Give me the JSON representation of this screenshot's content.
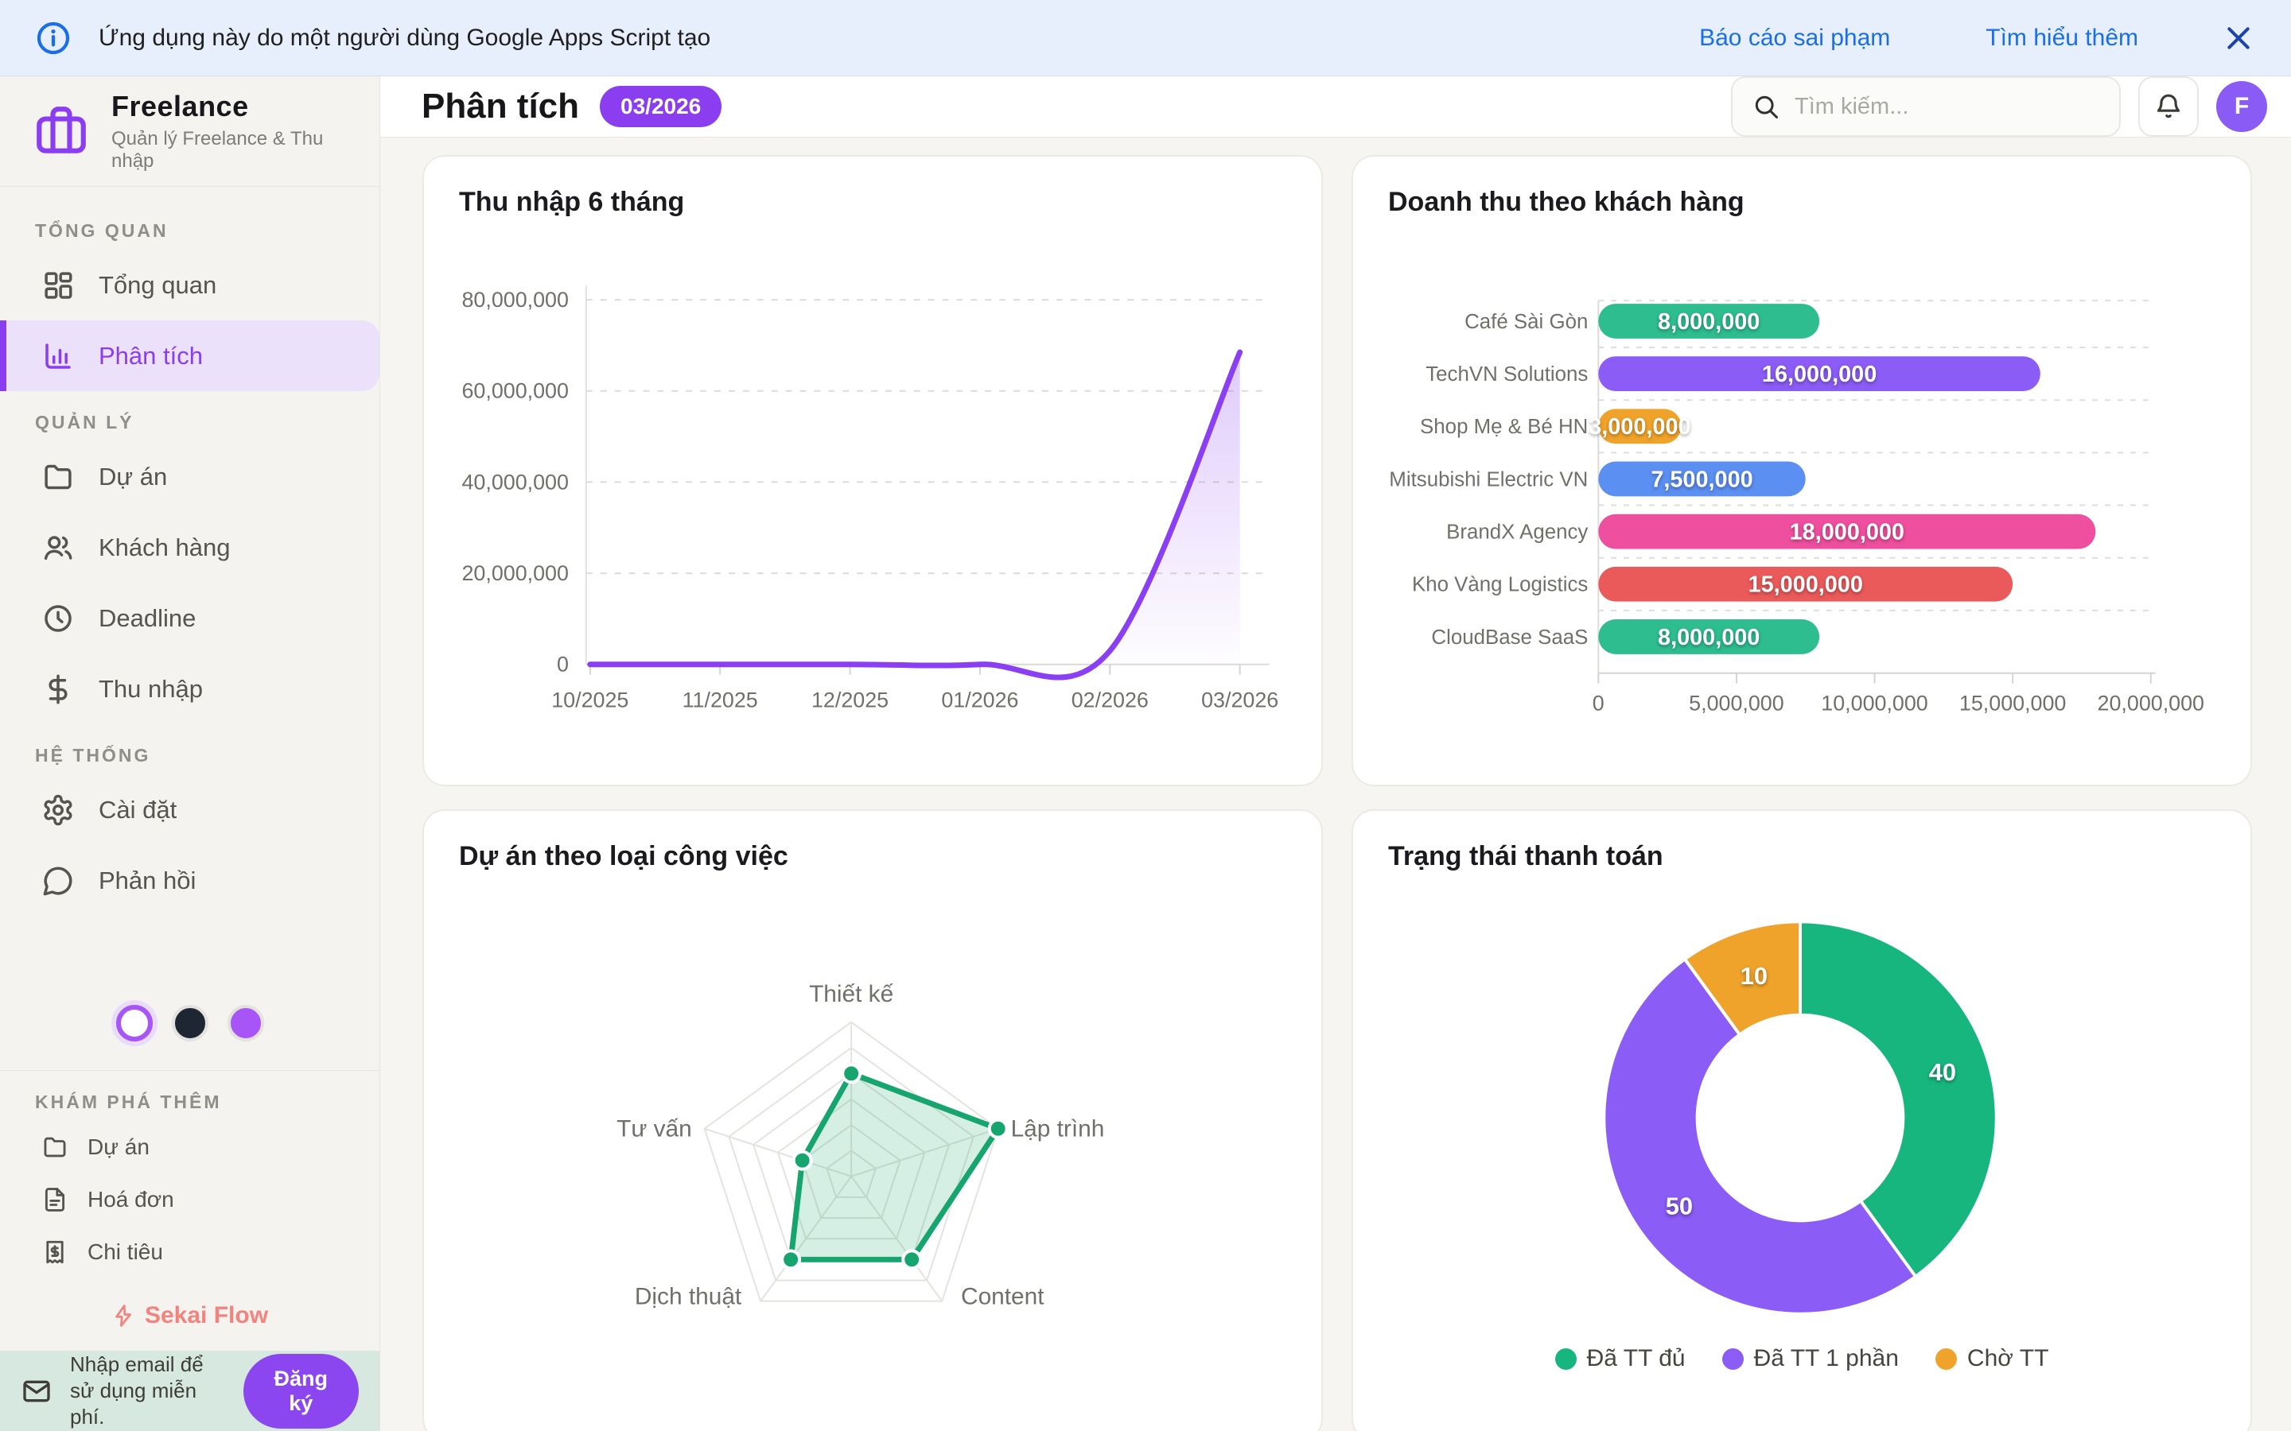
{
  "banner": {
    "message": "Ứng dụng này do một người dùng Google Apps Script tạo",
    "report_label": "Báo cáo sai phạm",
    "learn_label": "Tìm hiểu thêm"
  },
  "sidebar": {
    "app_name": "Freelance",
    "app_subtitle": "Quản lý Freelance & Thu nhập",
    "sections": [
      {
        "label": "TỔNG QUAN",
        "items": [
          {
            "label": "Tổng quan",
            "icon": "dashboard-icon",
            "active": false
          },
          {
            "label": "Phân tích",
            "icon": "analytics-icon",
            "active": true
          }
        ]
      },
      {
        "label": "QUẢN LÝ",
        "items": [
          {
            "label": "Dự án",
            "icon": "folder-icon",
            "active": false
          },
          {
            "label": "Khách hàng",
            "icon": "users-icon",
            "active": false
          },
          {
            "label": "Deadline",
            "icon": "clock-icon",
            "active": false
          },
          {
            "label": "Thu nhập",
            "icon": "dollar-icon",
            "active": false
          }
        ]
      },
      {
        "label": "HỆ THỐNG",
        "items": [
          {
            "label": "Cài đặt",
            "icon": "gear-icon",
            "active": false
          },
          {
            "label": "Phản hồi",
            "icon": "chat-icon",
            "active": false
          }
        ]
      }
    ],
    "theme_swatches": [
      "#ffffff",
      "#1e2533",
      "#a855f7"
    ],
    "explore": {
      "label": "KHÁM PHÁ THÊM",
      "items": [
        {
          "label": "Dự án",
          "icon": "folder-icon"
        },
        {
          "label": "Hoá đơn",
          "icon": "invoice-icon"
        },
        {
          "label": "Chi tiêu",
          "icon": "receipt-icon"
        }
      ]
    },
    "brand_link": "Sekai Flow",
    "email_cta": {
      "text": "Nhập email để sử dụng miễn phí.",
      "button": "Đăng ký"
    }
  },
  "header": {
    "title": "Phân tích",
    "period_badge": "03/2026",
    "search_placeholder": "Tìm kiếm...",
    "avatar_letter": "F"
  },
  "chart_data": [
    {
      "type": "line",
      "title": "Thu nhập 6 tháng",
      "x": [
        "10/2025",
        "11/2025",
        "12/2025",
        "01/2026",
        "02/2026",
        "03/2026"
      ],
      "values": [
        0,
        0,
        0,
        0,
        3000000,
        68500000
      ],
      "ylim": [
        0,
        80000000
      ],
      "yticks": [
        0,
        20000000,
        40000000,
        60000000,
        80000000
      ],
      "color": "#8a3ff2",
      "grid": "dashed-horizontal",
      "legend": "none"
    },
    {
      "type": "bar",
      "orientation": "horizontal",
      "title": "Doanh thu theo khách hàng",
      "categories": [
        "Café Sài Gòn",
        "TechVN Solutions",
        "Shop Mẹ & Bé HN",
        "Mitsubishi Electric VN",
        "BrandX Agency",
        "Kho Vàng Logistics",
        "CloudBase SaaS"
      ],
      "values": [
        8000000,
        16000000,
        3000000,
        7500000,
        18000000,
        15000000,
        8000000
      ],
      "colors": [
        "#2ebd8f",
        "#8b5cf6",
        "#f0a32b",
        "#5b8ff2",
        "#ee4f9e",
        "#ea5a5a",
        "#2ebd8f"
      ],
      "xlim": [
        0,
        20000000
      ],
      "xticks": [
        0,
        5000000,
        10000000,
        15000000,
        20000000
      ],
      "value_labels": "inside-white"
    },
    {
      "type": "radar",
      "title": "Dự án theo loại công việc",
      "categories": [
        "Thiết kế",
        "Lập trình",
        "Content",
        "Dịch thuật",
        "Tư vấn"
      ],
      "values": [
        2,
        3,
        2,
        2,
        1
      ],
      "max": 3,
      "rings": 6,
      "color": "#17a56f"
    },
    {
      "type": "donut",
      "title": "Trạng thái thanh toán",
      "labels": [
        "Đã TT đủ",
        "Đã TT 1 phần",
        "Chờ TT"
      ],
      "values": [
        40,
        50,
        10
      ],
      "colors": [
        "#17b67f",
        "#8b5cf6",
        "#f0a32b"
      ],
      "legend": "bottom"
    }
  ]
}
